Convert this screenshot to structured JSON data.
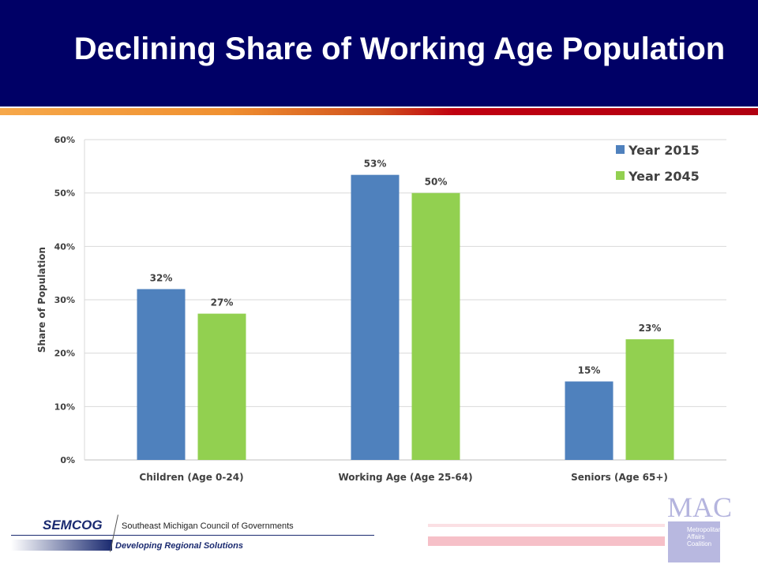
{
  "header": {
    "title": "Declining Share of Working Age Population"
  },
  "chart_data": {
    "type": "bar",
    "title": "Declining Share of Working Age Population",
    "xlabel": "",
    "ylabel": "Share of Population",
    "ylim": [
      0,
      60
    ],
    "yticks": [
      "0%",
      "10%",
      "20%",
      "30%",
      "40%",
      "50%",
      "60%"
    ],
    "grid": true,
    "legend_position": "top-right",
    "categories": [
      "Children (Age 0-24)",
      "Working Age (Age 25-64)",
      "Seniors (Age 65+)"
    ],
    "series": [
      {
        "name": "Year 2015",
        "color": "#4f81bd",
        "values": [
          32,
          53.4,
          14.7
        ],
        "labels": [
          "32%",
          "53%",
          "15%"
        ]
      },
      {
        "name": "Year 2045",
        "color": "#92d050",
        "values": [
          27.4,
          50,
          22.6
        ],
        "labels": [
          "27%",
          "50%",
          "23%"
        ]
      }
    ]
  },
  "footer": {
    "semcog_logo": "SEMCOG",
    "semcog_name": "Southeast Michigan Council of Governments",
    "semcog_tagline": "Developing Regional Solutions",
    "mac_logo": "MAC",
    "mac_name": "Metropolitan Affairs Coalition"
  }
}
